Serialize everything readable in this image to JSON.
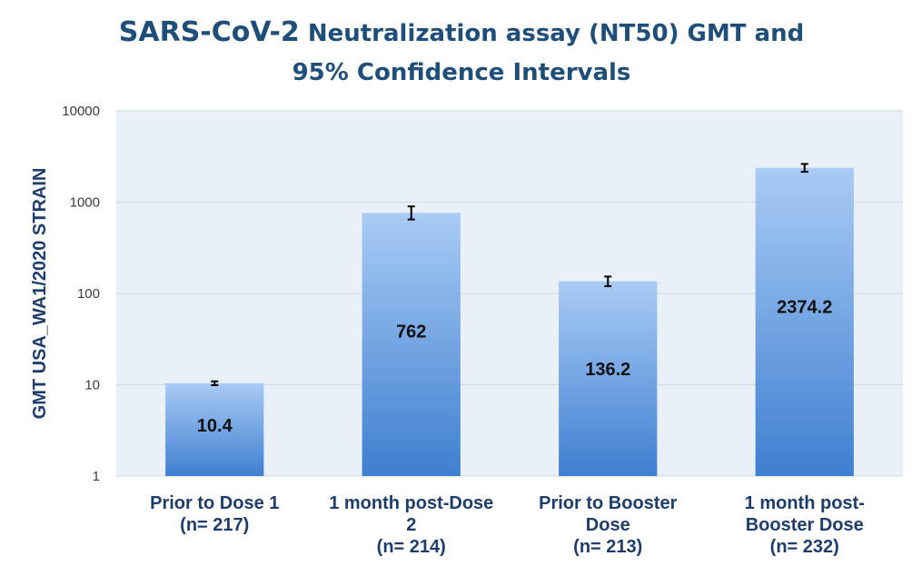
{
  "chart_data": {
    "type": "bar",
    "title_part1": "SARS-CoV-2",
    "title_part2": " Neutralization assay (NT50) GMT and",
    "title_line2": "95% Confidence Intervals",
    "xlabel": "",
    "ylabel": "GMT USA_WA1/2020  STRAIN",
    "yscale": "log",
    "ylim": [
      1,
      10000
    ],
    "yticks": [
      1,
      10,
      100,
      1000,
      10000
    ],
    "ytick_labels": [
      "1",
      "10",
      "100",
      "1000",
      "10000"
    ],
    "grid": true,
    "legend": "none",
    "categories": [
      [
        "Prior to Dose 1",
        "(n= 217)"
      ],
      [
        "1 month post-Dose",
        "2",
        "(n= 214)"
      ],
      [
        "Prior to Booster",
        "Dose",
        "(n= 213)"
      ],
      [
        "1 month post-",
        "Booster Dose",
        "(n= 232)"
      ]
    ],
    "values": [
      10.4,
      762,
      136.2,
      2374.2
    ],
    "value_labels": [
      "10.4",
      "762",
      "136.2",
      "2374.2"
    ],
    "ci_low": [
      9.9,
      646,
      120,
      2150
    ],
    "ci_high": [
      10.9,
      898,
      153,
      2621
    ],
    "colors": {
      "title": "#1f4e79",
      "axis_text": "#1f3d6b",
      "bar_top": "#a9cbf5",
      "bar_bottom": "#3f7fd0",
      "plot_bg": "#eaf0f8",
      "grid": "#d2dde9"
    }
  }
}
